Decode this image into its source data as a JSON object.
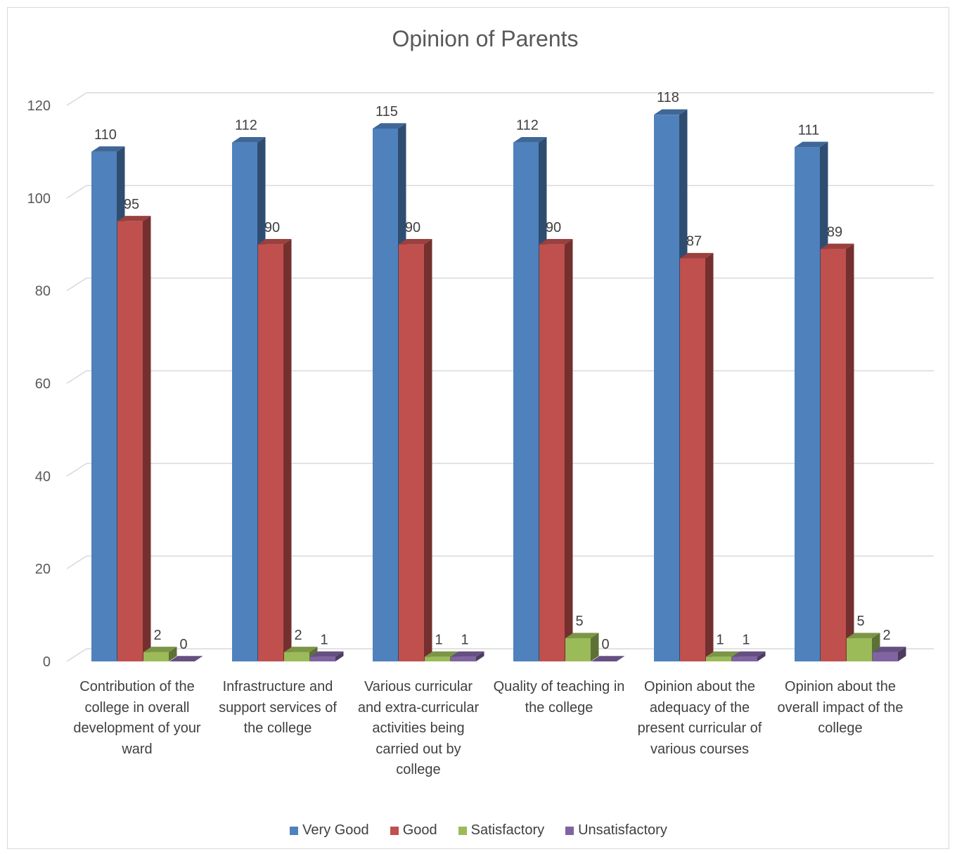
{
  "chart_data": {
    "type": "bar",
    "title": "Opinion of Parents",
    "categories": [
      "Contribution of the college in overall development of your ward",
      "Infrastructure and support services of the college",
      "Various curricular and extra-curricular activities being carried out by college",
      "Quality of teaching in the college",
      "Opinion about the adequacy of the present curricular of various courses",
      "Opinion about the overall impact of the college"
    ],
    "series": [
      {
        "name": "Very Good",
        "values": [
          110,
          112,
          115,
          112,
          118,
          111
        ],
        "color": "#4F81BD"
      },
      {
        "name": "Good",
        "values": [
          95,
          90,
          90,
          90,
          87,
          89
        ],
        "color": "#C0504D"
      },
      {
        "name": "Satisfactory",
        "values": [
          2,
          2,
          1,
          5,
          1,
          5
        ],
        "color": "#9BBB59"
      },
      {
        "name": "Unsatisfactory",
        "values": [
          0,
          1,
          1,
          0,
          1,
          2
        ],
        "color": "#8064A2"
      }
    ],
    "ylim": [
      0,
      120
    ],
    "yticks": [
      0,
      20,
      40,
      60,
      80,
      100,
      120
    ],
    "grid": true,
    "legend": "bottom",
    "style": "3d-clustered-column"
  }
}
